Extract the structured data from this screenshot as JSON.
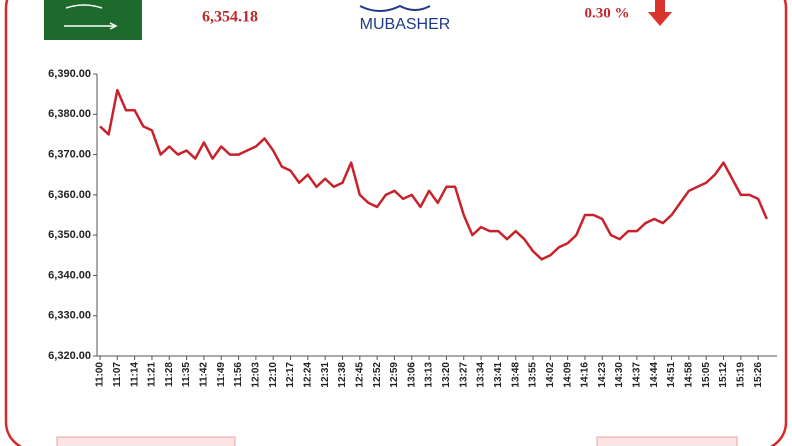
{
  "header": {
    "price": "6,354.18",
    "change": "0.30 %",
    "logo": "MUBASHER"
  },
  "chart_data": {
    "type": "line",
    "categories": [
      "11:00",
      null,
      "11:07",
      null,
      "11:14",
      null,
      "11:21",
      null,
      "11:28",
      null,
      "11:35",
      null,
      "11:42",
      null,
      "11:49",
      null,
      "11:56",
      null,
      "12:03",
      null,
      "12:10",
      null,
      "12:17",
      null,
      "12:24",
      null,
      "12:31",
      null,
      "12:38",
      null,
      "12:45",
      null,
      "12:52",
      null,
      "12:59",
      null,
      "13:06",
      null,
      "13:13",
      null,
      "13:20",
      null,
      "13:27",
      null,
      "13:34",
      null,
      "13:41",
      null,
      "13:48",
      null,
      "13:55",
      null,
      "14:02",
      null,
      "14:09",
      null,
      "14:16",
      null,
      "14:23",
      null,
      "14:30",
      null,
      "14:37",
      null,
      "14:44",
      null,
      "14:51",
      null,
      "14:58",
      null,
      "15:05",
      null,
      "15:12",
      null,
      "15:19",
      null,
      "15:26",
      null
    ],
    "values": [
      6377,
      6375,
      6386,
      6381,
      6381,
      6377,
      6376,
      6370,
      6372,
      6370,
      6371,
      6369,
      6373,
      6369,
      6372,
      6370,
      6370,
      6371,
      6372,
      6374,
      6371,
      6367,
      6366,
      6363,
      6365,
      6362,
      6364,
      6362,
      6363,
      6368,
      6360,
      6358,
      6357,
      6360,
      6361,
      6359,
      6360,
      6357,
      6361,
      6358,
      6362,
      6362,
      6355,
      6350,
      6352,
      6351,
      6351,
      6349,
      6351,
      6349,
      6346,
      6344,
      6345,
      6347,
      6348,
      6350,
      6355,
      6355,
      6354,
      6350,
      6349,
      6351,
      6351,
      6353,
      6354,
      6353,
      6355,
      6358,
      6361,
      6362,
      6363,
      6365,
      6368,
      6364,
      6360,
      6360,
      6359,
      6354
    ],
    "color": "#c8232c",
    "ylim": [
      6320,
      6390
    ],
    "yticks": [
      {
        "value": 6320,
        "label": "6,320.00"
      },
      {
        "value": 6330,
        "label": "6,330.00"
      },
      {
        "value": 6340,
        "label": "6,340.00"
      },
      {
        "value": 6350,
        "label": "6,350.00"
      },
      {
        "value": 6360,
        "label": "6,360.00"
      },
      {
        "value": 6370,
        "label": "6,370.00"
      },
      {
        "value": 6380,
        "label": "6,380.00"
      },
      {
        "value": 6390,
        "label": "6,390.00"
      }
    ],
    "grid": false
  }
}
